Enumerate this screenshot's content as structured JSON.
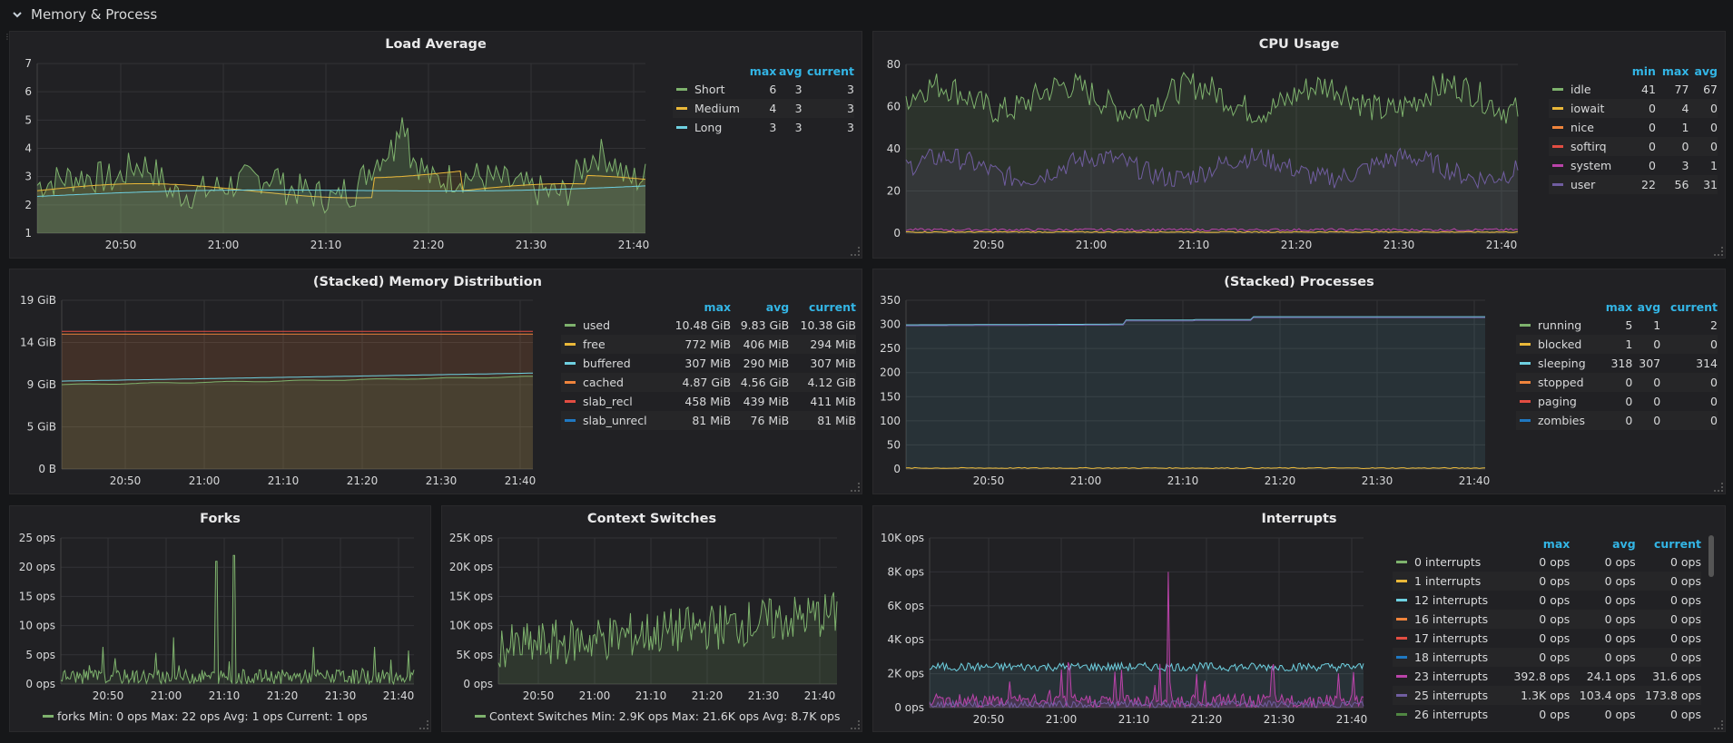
{
  "row": {
    "title": "Memory & Process",
    "icon": "chevron-down-icon"
  },
  "panels": {
    "load": {
      "title": "Load Average",
      "yticks": [
        "7",
        "6",
        "5",
        "4",
        "3",
        "2",
        "1"
      ],
      "xticks": [
        "20:50",
        "21:00",
        "21:10",
        "21:20",
        "21:30",
        "21:40"
      ],
      "legend_cols": [
        "max",
        "avg",
        "current"
      ],
      "legend": [
        {
          "name": "Short",
          "color": "#7eb26d",
          "vals": [
            "6",
            "3",
            "3"
          ]
        },
        {
          "name": "Medium",
          "color": "#eab839",
          "vals": [
            "4",
            "3",
            "3"
          ]
        },
        {
          "name": "Long",
          "color": "#6ed0e0",
          "vals": [
            "3",
            "3",
            "3"
          ]
        }
      ]
    },
    "cpu": {
      "title": "CPU Usage",
      "yticks": [
        "80",
        "60",
        "40",
        "20",
        "0"
      ],
      "xticks": [
        "20:50",
        "21:00",
        "21:10",
        "21:20",
        "21:30",
        "21:40"
      ],
      "legend_cols": [
        "min",
        "max",
        "avg"
      ],
      "legend": [
        {
          "name": "idle",
          "color": "#7eb26d",
          "vals": [
            "41",
            "77",
            "67"
          ]
        },
        {
          "name": "iowait",
          "color": "#eab839",
          "vals": [
            "0",
            "4",
            "0"
          ]
        },
        {
          "name": "nice",
          "color": "#ef843c",
          "vals": [
            "0",
            "1",
            "0"
          ]
        },
        {
          "name": "softirq",
          "color": "#e24d42",
          "vals": [
            "0",
            "0",
            "0"
          ]
        },
        {
          "name": "system",
          "color": "#ba43a9",
          "vals": [
            "0",
            "3",
            "1"
          ]
        },
        {
          "name": "user",
          "color": "#705da0",
          "vals": [
            "22",
            "56",
            "31"
          ]
        }
      ]
    },
    "memory": {
      "title": "(Stacked) Memory Distribution",
      "yticks": [
        "19 GiB",
        "14 GiB",
        "9 GiB",
        "5 GiB",
        "0 B"
      ],
      "xticks": [
        "20:50",
        "21:00",
        "21:10",
        "21:20",
        "21:30",
        "21:40"
      ],
      "legend_cols": [
        "max",
        "avg",
        "current"
      ],
      "legend": [
        {
          "name": "used",
          "color": "#7eb26d",
          "vals": [
            "10.48 GiB",
            "9.83 GiB",
            "10.38 GiB"
          ]
        },
        {
          "name": "free",
          "color": "#eab839",
          "vals": [
            "772 MiB",
            "406 MiB",
            "294 MiB"
          ]
        },
        {
          "name": "buffered",
          "color": "#6ed0e0",
          "vals": [
            "307 MiB",
            "290 MiB",
            "307 MiB"
          ]
        },
        {
          "name": "cached",
          "color": "#ef843c",
          "vals": [
            "4.87 GiB",
            "4.56 GiB",
            "4.12 GiB"
          ]
        },
        {
          "name": "slab_recl",
          "color": "#e24d42",
          "vals": [
            "458 MiB",
            "439 MiB",
            "411 MiB"
          ]
        },
        {
          "name": "slab_unrecl",
          "color": "#1f78c1",
          "vals": [
            "81 MiB",
            "76 MiB",
            "81 MiB"
          ]
        }
      ]
    },
    "processes": {
      "title": "(Stacked) Processes",
      "yticks": [
        "350",
        "300",
        "250",
        "200",
        "150",
        "100",
        "50",
        "0"
      ],
      "xticks": [
        "20:50",
        "21:00",
        "21:10",
        "21:20",
        "21:30",
        "21:40"
      ],
      "legend_cols": [
        "max",
        "avg",
        "current"
      ],
      "legend": [
        {
          "name": "running",
          "color": "#7eb26d",
          "vals": [
            "5",
            "1",
            "2"
          ]
        },
        {
          "name": "blocked",
          "color": "#eab839",
          "vals": [
            "1",
            "0",
            "0"
          ]
        },
        {
          "name": "sleeping",
          "color": "#6ed0e0",
          "vals": [
            "318",
            "307",
            "314"
          ]
        },
        {
          "name": "stopped",
          "color": "#ef843c",
          "vals": [
            "0",
            "0",
            "0"
          ]
        },
        {
          "name": "paging",
          "color": "#e24d42",
          "vals": [
            "0",
            "0",
            "0"
          ]
        },
        {
          "name": "zombies",
          "color": "#1f78c1",
          "vals": [
            "0",
            "0",
            "0"
          ]
        }
      ]
    },
    "forks": {
      "title": "Forks",
      "yticks": [
        "25 ops",
        "20 ops",
        "15 ops",
        "10 ops",
        "5 ops",
        "0 ops"
      ],
      "xticks": [
        "20:50",
        "21:00",
        "21:10",
        "21:20",
        "21:30",
        "21:40"
      ],
      "legend_text": "forks  Min: 0 ops  Max: 22 ops  Avg: 1 ops  Current: 1 ops",
      "color": "#7eb26d"
    },
    "ctx": {
      "title": "Context Switches",
      "yticks": [
        "25K ops",
        "20K ops",
        "15K ops",
        "10K ops",
        "5K ops",
        "0 ops"
      ],
      "xticks": [
        "20:50",
        "21:00",
        "21:10",
        "21:20",
        "21:30",
        "21:40"
      ],
      "legend_text": "Context Switches  Min: 2.9K ops  Max: 21.6K ops  Avg: 8.7K ops",
      "color": "#7eb26d"
    },
    "interrupts": {
      "title": "Interrupts",
      "yticks": [
        "10K ops",
        "8K ops",
        "6K ops",
        "4K ops",
        "2K ops",
        "0 ops"
      ],
      "xticks": [
        "20:50",
        "21:00",
        "21:10",
        "21:20",
        "21:30",
        "21:40"
      ],
      "legend_cols": [
        "max",
        "avg",
        "current"
      ],
      "legend": [
        {
          "name": "0 interrupts",
          "color": "#7eb26d",
          "vals": [
            "0 ops",
            "0 ops",
            "0 ops"
          ]
        },
        {
          "name": "1 interrupts",
          "color": "#eab839",
          "vals": [
            "0 ops",
            "0 ops",
            "0 ops"
          ]
        },
        {
          "name": "12 interrupts",
          "color": "#6ed0e0",
          "vals": [
            "0 ops",
            "0 ops",
            "0 ops"
          ]
        },
        {
          "name": "16 interrupts",
          "color": "#ef843c",
          "vals": [
            "0 ops",
            "0 ops",
            "0 ops"
          ]
        },
        {
          "name": "17 interrupts",
          "color": "#e24d42",
          "vals": [
            "0 ops",
            "0 ops",
            "0 ops"
          ]
        },
        {
          "name": "18 interrupts",
          "color": "#1f78c1",
          "vals": [
            "0 ops",
            "0 ops",
            "0 ops"
          ]
        },
        {
          "name": "23 interrupts",
          "color": "#ba43a9",
          "vals": [
            "392.8 ops",
            "24.1 ops",
            "31.6 ops"
          ]
        },
        {
          "name": "25 interrupts",
          "color": "#705da0",
          "vals": [
            "1.3K ops",
            "103.4 ops",
            "173.8 ops"
          ]
        },
        {
          "name": "26 interrupts",
          "color": "#508642",
          "vals": [
            "0 ops",
            "0 ops",
            "0 ops"
          ]
        }
      ]
    }
  }
}
